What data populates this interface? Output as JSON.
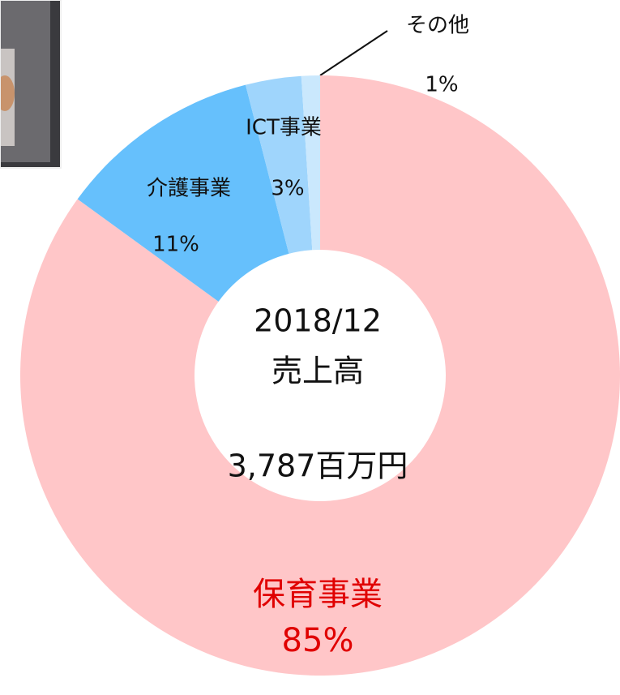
{
  "chart_data": {
    "type": "donut",
    "center_text": [
      "2018/12",
      "売上高",
      "3,787百万円"
    ],
    "categories": [
      "保育事業",
      "介護事業",
      "ICT事業",
      "その他"
    ],
    "values": [
      85,
      11,
      3,
      1
    ],
    "value_labels": [
      "85%",
      "11%",
      "3%",
      "1%"
    ],
    "colors": [
      "#ffc6c8",
      "#66c0fc",
      "#9fd5fc",
      "#cae8fd"
    ],
    "label_colors": [
      "#e00000",
      "#111111",
      "#111111",
      "#111111"
    ]
  }
}
